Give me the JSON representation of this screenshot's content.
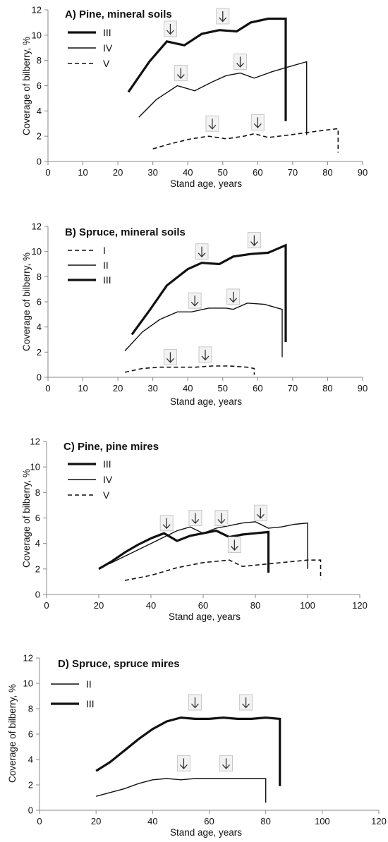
{
  "chart_data": [
    {
      "type": "line",
      "title": "A) Pine, mineral soils",
      "xlabel": "Stand age, years",
      "ylabel": "Coverage of bilberry, %",
      "xlim": [
        0,
        90
      ],
      "ylim": [
        0,
        12
      ],
      "xticks": [
        0,
        10,
        20,
        30,
        40,
        50,
        60,
        70,
        80,
        90
      ],
      "yticks": [
        0,
        2,
        4,
        6,
        8,
        10,
        12
      ],
      "grid": false,
      "legend_position": "top-left",
      "series": [
        {
          "name": "III",
          "style": "thick",
          "x": [
            23,
            29,
            34,
            39,
            44,
            49,
            54,
            58,
            63,
            68
          ],
          "y": [
            5.5,
            7.9,
            9.5,
            9.2,
            10.1,
            10.4,
            10.3,
            11.0,
            11.3,
            11.3
          ],
          "drop_x": 68,
          "drop_to": 3.2
        },
        {
          "name": "IV",
          "style": "thin",
          "x": [
            26,
            31,
            37,
            42,
            47,
            51,
            55,
            59,
            64,
            69,
            74
          ],
          "y": [
            3.5,
            4.9,
            6.0,
            5.6,
            6.3,
            6.8,
            7.0,
            6.6,
            7.1,
            7.5,
            7.9
          ],
          "drop_x": 74,
          "drop_to": 2.1
        },
        {
          "name": "V",
          "style": "dashed",
          "x": [
            30,
            35,
            41,
            46,
            51,
            56,
            59,
            63,
            69,
            77,
            83
          ],
          "y": [
            1.0,
            1.4,
            1.8,
            2.0,
            1.8,
            2.0,
            2.2,
            1.9,
            2.1,
            2.4,
            2.6
          ],
          "drop_x": 83,
          "drop_to": 0.7
        }
      ],
      "arrows": [
        {
          "x": 35,
          "y": 10.5
        },
        {
          "x": 50,
          "y": 11.5
        },
        {
          "x": 38,
          "y": 7.0
        },
        {
          "x": 55,
          "y": 7.9
        },
        {
          "x": 47,
          "y": 3.0
        },
        {
          "x": 60,
          "y": 3.1
        }
      ]
    },
    {
      "type": "line",
      "title": "B) Spruce, mineral soils",
      "xlabel": "Stand age, years",
      "ylabel": "Coverage of bilberry, %",
      "xlim": [
        0,
        90
      ],
      "ylim": [
        0,
        12
      ],
      "xticks": [
        0,
        10,
        20,
        30,
        40,
        50,
        60,
        70,
        80,
        90
      ],
      "yticks": [
        0,
        2,
        4,
        6,
        8,
        10,
        12
      ],
      "grid": false,
      "legend_position": "top-left",
      "series": [
        {
          "name": "I",
          "style": "dashed",
          "x": [
            22,
            27,
            32,
            37,
            42,
            47,
            52,
            57,
            59
          ],
          "y": [
            0.4,
            0.7,
            0.8,
            0.8,
            0.8,
            0.9,
            0.9,
            0.8,
            0.7
          ],
          "drop_x": 59,
          "drop_to": 0.2
        },
        {
          "name": "II",
          "style": "thin",
          "x": [
            22,
            27,
            32,
            37,
            41,
            46,
            51,
            53,
            57,
            62,
            67
          ],
          "y": [
            2.1,
            3.6,
            4.6,
            5.2,
            5.2,
            5.5,
            5.5,
            5.4,
            5.9,
            5.8,
            5.4
          ],
          "drop_x": 67,
          "drop_to": 1.6
        },
        {
          "name": "III",
          "style": "thick",
          "x": [
            24,
            29,
            34,
            40,
            44,
            49,
            53,
            58,
            63,
            68
          ],
          "y": [
            3.4,
            5.3,
            7.3,
            8.6,
            9.1,
            9.0,
            9.6,
            9.8,
            9.9,
            10.5
          ],
          "drop_x": 68,
          "drop_to": 2.8
        }
      ],
      "arrows": [
        {
          "x": 44,
          "y": 10.0
        },
        {
          "x": 59,
          "y": 10.9
        },
        {
          "x": 42,
          "y": 6.1
        },
        {
          "x": 53,
          "y": 6.4
        },
        {
          "x": 35,
          "y": 1.6
        },
        {
          "x": 45,
          "y": 1.8
        }
      ]
    },
    {
      "type": "line",
      "title": "C) Pine, pine mires",
      "xlabel": "Stand age, years",
      "ylabel": "Coverage of bilberry, %",
      "xlim": [
        0,
        120
      ],
      "ylim": [
        0,
        12
      ],
      "xticks": [
        0,
        20,
        40,
        60,
        80,
        100,
        120
      ],
      "yticks": [
        0,
        2,
        4,
        6,
        8,
        10,
        12
      ],
      "grid": false,
      "legend_position": "top-left",
      "series": [
        {
          "name": "III",
          "style": "thick",
          "x": [
            20,
            25,
            30,
            35,
            40,
            45,
            50,
            55,
            60,
            65,
            70,
            75,
            80,
            85
          ],
          "y": [
            2.0,
            2.6,
            3.3,
            3.9,
            4.4,
            4.8,
            4.2,
            4.6,
            4.8,
            5.0,
            4.5,
            4.7,
            4.8,
            4.9
          ],
          "drop_x": 85,
          "drop_to": 1.7
        },
        {
          "name": "IV",
          "style": "thin",
          "x": [
            24,
            30,
            35,
            40,
            45,
            50,
            55,
            60,
            65,
            70,
            75,
            80,
            85,
            90,
            95,
            100
          ],
          "y": [
            2.4,
            3.0,
            3.5,
            4.0,
            4.5,
            5.0,
            5.3,
            4.8,
            5.2,
            5.4,
            5.6,
            5.7,
            5.2,
            5.3,
            5.5,
            5.6
          ],
          "drop_x": 100,
          "drop_to": 2.0
        },
        {
          "name": "V",
          "style": "dashed",
          "x": [
            30,
            35,
            40,
            45,
            50,
            55,
            60,
            65,
            70,
            75,
            80,
            85,
            90,
            95,
            100,
            105
          ],
          "y": [
            1.1,
            1.3,
            1.5,
            1.8,
            2.1,
            2.3,
            2.5,
            2.6,
            2.7,
            2.2,
            2.3,
            2.4,
            2.5,
            2.6,
            2.7,
            2.7
          ],
          "drop_x": 105,
          "drop_to": 1.2
        }
      ],
      "arrows": [
        {
          "x": 46,
          "y": 5.6
        },
        {
          "x": 57,
          "y": 6.0
        },
        {
          "x": 67,
          "y": 6.0
        },
        {
          "x": 82,
          "y": 6.4
        },
        {
          "x": 72,
          "y": 3.9
        }
      ]
    },
    {
      "type": "line",
      "title": "D) Spruce, spruce mires",
      "xlabel": "Stand age, years",
      "ylabel": "Coverage of bilberry, %",
      "xlim": [
        0,
        120
      ],
      "ylim": [
        0,
        12
      ],
      "xticks": [
        0,
        20,
        40,
        60,
        80,
        100,
        120
      ],
      "yticks": [
        0,
        2,
        4,
        6,
        8,
        10,
        12
      ],
      "grid": false,
      "legend_position": "top-left",
      "series": [
        {
          "name": "II",
          "style": "thin",
          "x": [
            20,
            25,
            30,
            35,
            40,
            45,
            50,
            55,
            60,
            65,
            70,
            75,
            80
          ],
          "y": [
            1.1,
            1.4,
            1.7,
            2.1,
            2.4,
            2.5,
            2.4,
            2.5,
            2.5,
            2.5,
            2.5,
            2.5,
            2.5
          ],
          "drop_x": 80,
          "drop_to": 0.6
        },
        {
          "name": "III",
          "style": "thick",
          "x": [
            20,
            25,
            30,
            35,
            40,
            45,
            50,
            55,
            60,
            65,
            70,
            75,
            80,
            85
          ],
          "y": [
            3.1,
            3.8,
            4.7,
            5.6,
            6.4,
            7.0,
            7.3,
            7.2,
            7.2,
            7.3,
            7.2,
            7.2,
            7.3,
            7.2
          ],
          "drop_x": 85,
          "drop_to": 1.9
        }
      ],
      "arrows": [
        {
          "x": 55,
          "y": 8.5
        },
        {
          "x": 73,
          "y": 8.5
        },
        {
          "x": 51,
          "y": 3.7
        },
        {
          "x": 66,
          "y": 3.7
        }
      ]
    }
  ]
}
